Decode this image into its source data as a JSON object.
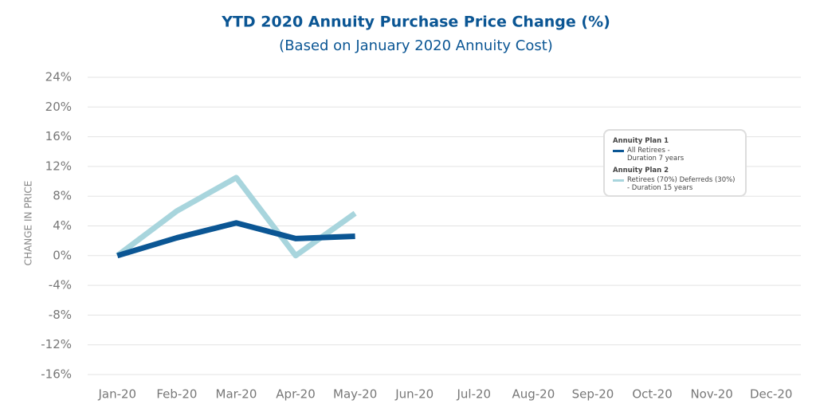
{
  "chart_data": {
    "type": "line",
    "title": "YTD 2020 Annuity Purchase Price Change (%)",
    "subtitle": "(Based on January 2020 Annuity Cost)",
    "y_label": "CHANGE IN PRICE",
    "categories": [
      "Jan-20",
      "Feb-20",
      "Mar-20",
      "Apr-20",
      "May-20",
      "Jun-20",
      "Jul-20",
      "Aug-20",
      "Sep-20",
      "Oct-20",
      "Nov-20",
      "Dec-20"
    ],
    "series": [
      {
        "group": "Annuity Plan 1",
        "name": "All Retirees - Duration 7 years",
        "color": "#0b5694",
        "values": [
          0,
          2.4,
          4.4,
          2.3,
          2.6,
          null,
          null,
          null,
          null,
          null,
          null,
          null
        ]
      },
      {
        "group": "Annuity Plan 2",
        "name": "Retirees (70%) Deferreds (30%) - Duration 15 years",
        "color": "#a8d5dd",
        "values": [
          0,
          6.0,
          10.5,
          0,
          5.7,
          null,
          null,
          null,
          null,
          null,
          null,
          null
        ]
      }
    ],
    "ylim": [
      -16,
      24
    ],
    "yticks": [
      {
        "value": -16,
        "label": "-16%"
      },
      {
        "value": -12,
        "label": "-12%"
      },
      {
        "value": -8,
        "label": "-8%"
      },
      {
        "value": -4,
        "label": "-4%"
      },
      {
        "value": 0,
        "label": "0%"
      },
      {
        "value": 4,
        "label": "4%"
      },
      {
        "value": 8,
        "label": "8%"
      },
      {
        "value": 12,
        "label": "12%"
      },
      {
        "value": 16,
        "label": "16%"
      },
      {
        "value": 20,
        "label": "20%"
      },
      {
        "value": 24,
        "label": "24%"
      }
    ],
    "grid": true,
    "legend": "upper right"
  }
}
